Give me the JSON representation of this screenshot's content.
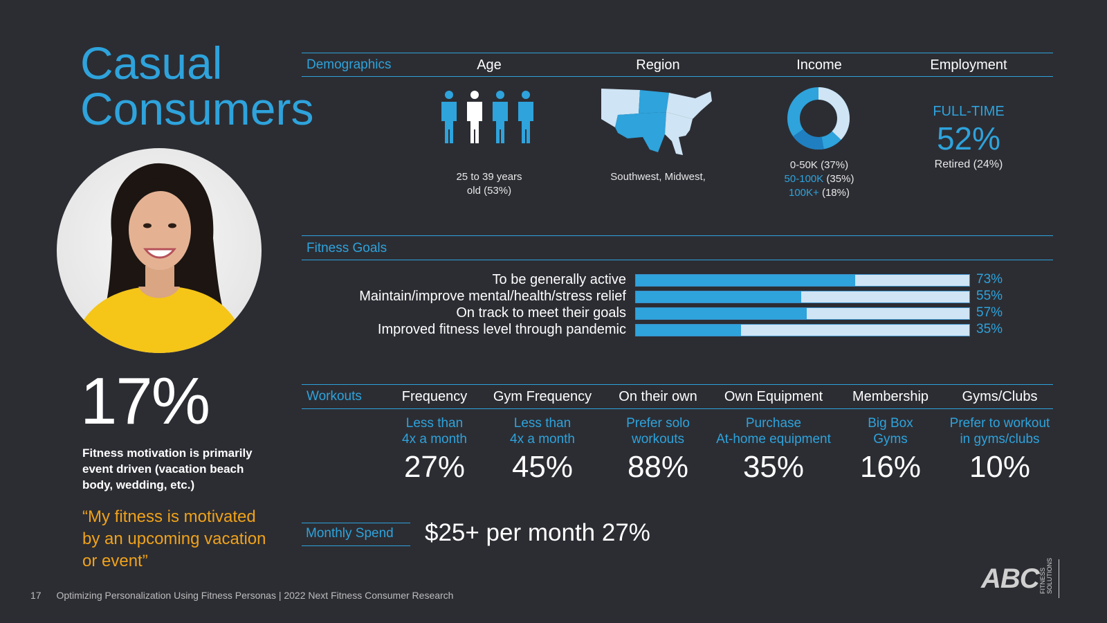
{
  "title_line1": "Casual",
  "title_line2": "Consumers",
  "persona": {
    "stat": "17%",
    "motivation": "Fitness motivation is primarily event driven (vacation beach body, wedding, etc.)",
    "quote": "“My fitness is motivated by an upcoming vacation or event”"
  },
  "demographics": {
    "label": "Demographics",
    "columns": {
      "age": {
        "heading": "Age",
        "caption_line1": "25 to 39 years",
        "caption_line2": "old (53%)"
      },
      "region": {
        "heading": "Region",
        "caption": "Southwest, Midwest,"
      },
      "income": {
        "heading": "Income",
        "rows": [
          {
            "range": "0-50K",
            "pct": " (37%)",
            "color": "#e8e8e8"
          },
          {
            "range": "50-100K",
            "pct": " (35%)",
            "color": "#2ea3dc"
          },
          {
            "range": "100K+",
            "pct": " (18%)",
            "color": "#2ea3dc"
          }
        ],
        "donut_share": 0.37
      },
      "employment": {
        "heading": "Employment",
        "type": "FULL-TIME",
        "value": "52%",
        "secondary": "Retired (24%)"
      }
    }
  },
  "fitness_goals": {
    "label": "Fitness Goals",
    "items": [
      {
        "label": "To be generally active",
        "value": 73,
        "display": "73%"
      },
      {
        "label": "Maintain/improve mental/health/stress relief",
        "value": 55,
        "display": "55%"
      },
      {
        "label": "On track to meet their goals",
        "value": 57,
        "display": "57%"
      },
      {
        "label": "Improved fitness level through pandemic",
        "value": 35,
        "display": "35%"
      }
    ]
  },
  "workouts": {
    "label": "Workouts",
    "columns": [
      {
        "heading": "Frequency",
        "desc1": "Less than",
        "desc2": "4x a month",
        "value": "27%"
      },
      {
        "heading": "Gym Frequency",
        "desc1": "Less than",
        "desc2": "4x a month",
        "value": "45%"
      },
      {
        "heading": "On their own",
        "desc1": "Prefer solo",
        "desc2": "workouts",
        "value": "88%"
      },
      {
        "heading": "Own Equipment",
        "desc1": "Purchase",
        "desc2": "At-home equipment",
        "value": "35%"
      },
      {
        "heading": "Membership",
        "desc1": "Big Box",
        "desc2": "Gyms",
        "value": "16%"
      },
      {
        "heading": "Gyms/Clubs",
        "desc1": "Prefer to workout",
        "desc2": "in gyms/clubs",
        "value": "10%"
      }
    ]
  },
  "monthly_spend": {
    "label": "Monthly Spend",
    "value": "$25+ per month 27%"
  },
  "footer": {
    "page": "17",
    "text": "Optimizing Personalization Using Fitness Personas |  2022 Next Fitness Consumer Research"
  },
  "logo": {
    "text": "ABC",
    "side_line1": "FITNESS",
    "side_line2": "SOLUTIONS"
  },
  "colors": {
    "accent": "#2ea3dc",
    "quote": "#f0a21a",
    "background": "#2c2d33"
  },
  "icons": [
    "people-icon",
    "usa-map-icon",
    "donut-chart-icon"
  ]
}
